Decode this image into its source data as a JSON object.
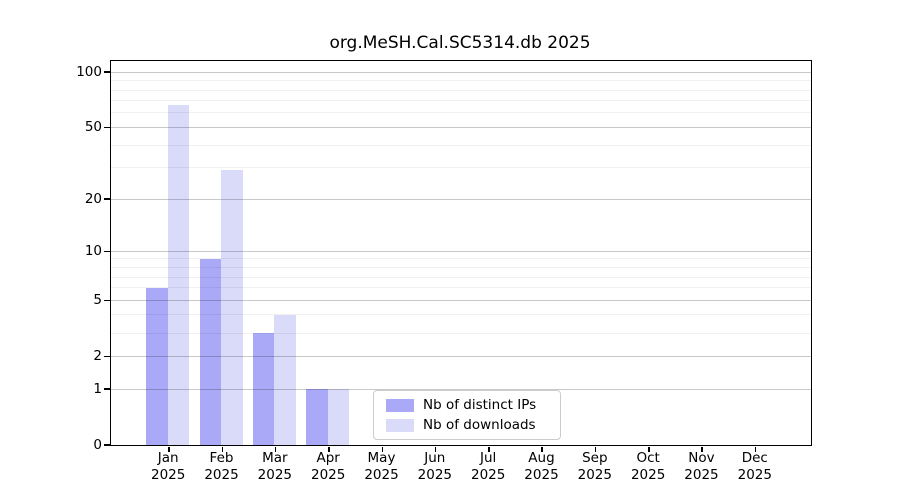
{
  "chart_data": {
    "type": "bar",
    "title": "org.MeSH.Cal.SC5314.db 2025",
    "categories": [
      "Jan 2025",
      "Feb 2025",
      "Mar 2025",
      "Apr 2025",
      "May 2025",
      "Jun 2025",
      "Jul 2025",
      "Aug 2025",
      "Sep 2025",
      "Oct 2025",
      "Nov 2025",
      "Dec 2025"
    ],
    "series": [
      {
        "name": "Nb of distinct IPs",
        "color": "#a9a9f7",
        "values": [
          6,
          9,
          3,
          1,
          0,
          0,
          0,
          0,
          0,
          0,
          0,
          0
        ]
      },
      {
        "name": "Nb of downloads",
        "color": "#dadaf9",
        "values": [
          66,
          29,
          4,
          1,
          0,
          0,
          0,
          0,
          0,
          0,
          0,
          0
        ]
      }
    ],
    "xlabel": "",
    "ylabel": "",
    "yscale": "log1p",
    "ylim": [
      0,
      115
    ],
    "y_ticks": [
      0,
      1,
      2,
      5,
      10,
      20,
      50,
      100
    ],
    "y_minor_ticks": [
      3,
      4,
      6,
      7,
      8,
      9,
      30,
      40,
      60,
      70,
      80,
      90
    ],
    "grid": "horizontal",
    "legend_position": "lower center",
    "background": "#ffffff",
    "frame_color": "#000000"
  }
}
